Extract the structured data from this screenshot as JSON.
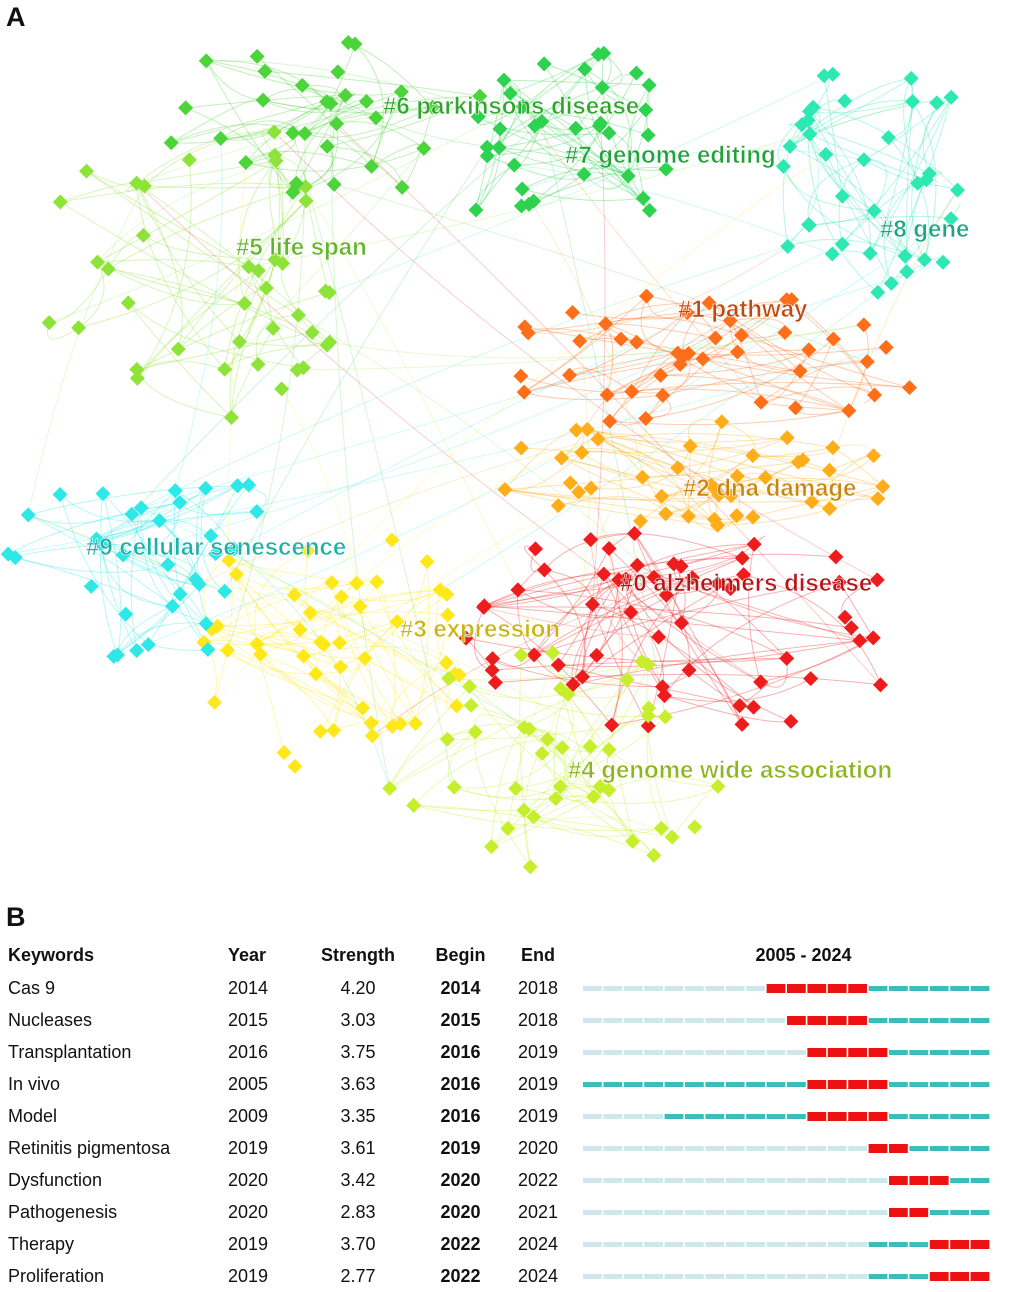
{
  "panels": {
    "a": "A",
    "b": "B"
  },
  "chart_data": [
    {
      "type": "network",
      "title": "",
      "clusters": [
        {
          "id": 0,
          "label": "#0 alzheimers disease",
          "color": "#ee1c1c",
          "label_color": "#b8141a"
        },
        {
          "id": 1,
          "label": "#1 pathway",
          "color": "#ff6f1a",
          "label_color": "#c24a12"
        },
        {
          "id": 2,
          "label": "#2 dna damage",
          "color": "#ffae1a",
          "label_color": "#c88512"
        },
        {
          "id": 3,
          "label": "#3 expression",
          "color": "#ffe81a",
          "label_color": "#c8b412"
        },
        {
          "id": 4,
          "label": "#4 genome wide association",
          "color": "#c6ee2c",
          "label_color": "#8cb520"
        },
        {
          "id": 5,
          "label": "#5 life span",
          "color": "#8ee33a",
          "label_color": "#62b42a"
        },
        {
          "id": 6,
          "label": "#6 parkinsons disease",
          "color": "#4cd43a",
          "label_color": "#2fa72a"
        },
        {
          "id": 7,
          "label": "#7 genome editing",
          "color": "#2ed24f",
          "label_color": "#22a23c"
        },
        {
          "id": 8,
          "label": "#8 gene",
          "color": "#2ee8b4",
          "label_color": "#1fa385"
        },
        {
          "id": 9,
          "label": "#9 cellular senescence",
          "color": "#2ee8e8",
          "label_color": "#1fb0a8"
        }
      ]
    },
    {
      "type": "table",
      "title": "2005 - 2024",
      "columns": [
        "Keywords",
        "Year",
        "Strength",
        "Begin",
        "End",
        "2005 - 2024"
      ],
      "timeline_start": 2005,
      "timeline_end": 2024,
      "rows": [
        {
          "keyword": "Cas 9",
          "year": 2014,
          "strength": "4.20",
          "begin": 2014,
          "end": 2018
        },
        {
          "keyword": "Nucleases",
          "year": 2015,
          "strength": "3.03",
          "begin": 2015,
          "end": 2018
        },
        {
          "keyword": "Transplantation",
          "year": 2016,
          "strength": "3.75",
          "begin": 2016,
          "end": 2019
        },
        {
          "keyword": "In vivo",
          "year": 2005,
          "strength": "3.63",
          "begin": 2016,
          "end": 2019
        },
        {
          "keyword": "Model",
          "year": 2009,
          "strength": "3.35",
          "begin": 2016,
          "end": 2019
        },
        {
          "keyword": "Retinitis pigmentosa",
          "year": 2019,
          "strength": "3.61",
          "begin": 2019,
          "end": 2020
        },
        {
          "keyword": "Dysfunction",
          "year": 2020,
          "strength": "3.42",
          "begin": 2020,
          "end": 2022
        },
        {
          "keyword": "Pathogenesis",
          "year": 2020,
          "strength": "2.83",
          "begin": 2020,
          "end": 2021
        },
        {
          "keyword": "Therapy",
          "year": 2019,
          "strength": "3.70",
          "begin": 2022,
          "end": 2024
        },
        {
          "keyword": "Proliferation",
          "year": 2019,
          "strength": "2.77",
          "begin": 2022,
          "end": 2024
        }
      ],
      "colors": {
        "burst": "#ee1111",
        "active": "#3bbdbd",
        "inactive": "#cce8ec"
      }
    }
  ]
}
